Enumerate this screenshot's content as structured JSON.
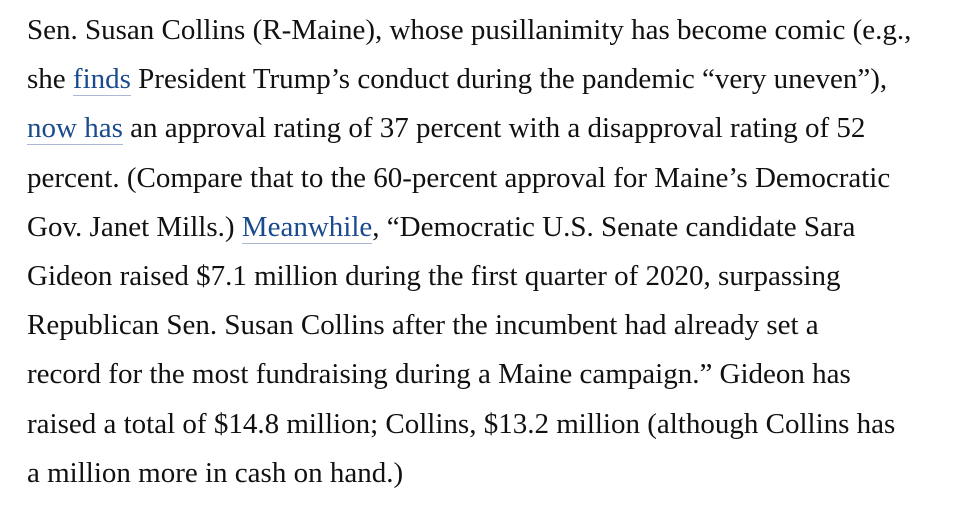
{
  "paragraph": {
    "l1": "Sen. Susan Collins (R-Maine), whose pusillanimity has become comic (e.g.,",
    "l2_a": "she ",
    "l2_link": "finds",
    "l2_b": " President Trump’s conduct during the pandemic “very uneven”),",
    "l3_link": "now has",
    "l3_b": " an approval rating of 37 percent with a disapproval rating of 52",
    "l4": "percent. (Compare that to the 60-percent approval for Maine’s Democratic",
    "l5_a": "Gov. Janet Mills.) ",
    "l5_link": "Meanwhile",
    "l5_b": ", “Democratic U.S. Senate candidate Sara",
    "l6": "Gideon raised $7.1 million during the first quarter of 2020, surpassing",
    "l7": "Republican Sen. Susan Collins after the incumbent had already set a",
    "l8": "record for the most fundraising during a Maine campaign.” Gideon has",
    "l9": "raised a total of $14.8 million; Collins, $13.2 million (although Collins has",
    "l10": "a million more in cash on hand.)"
  },
  "colors": {
    "text": "#111111",
    "link": "#1a4b8e"
  }
}
